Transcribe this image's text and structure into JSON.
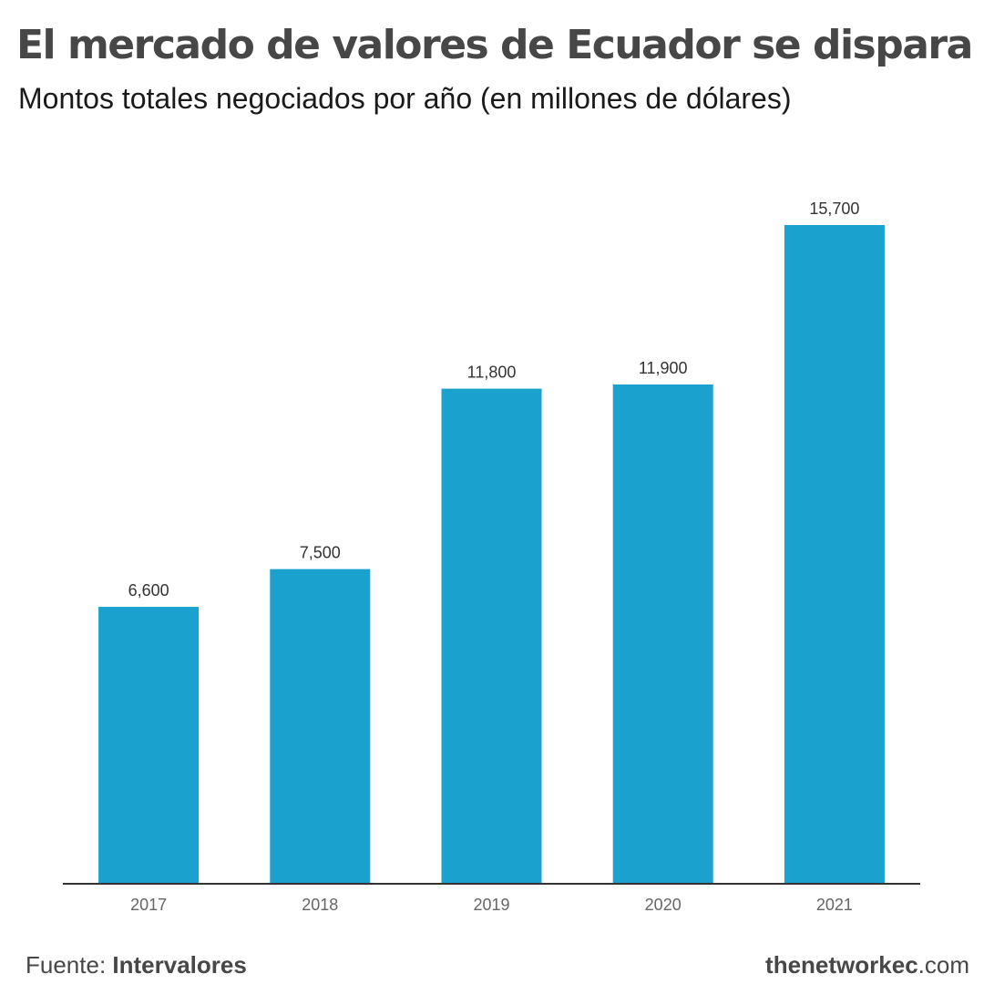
{
  "header": {
    "title": "El mercado de valores de Ecuador se dispara",
    "subtitle": "Montos totales negociados por año (en millones de dólares)"
  },
  "footer": {
    "source_prefix": "Fuente: ",
    "source_name": "Intervalores",
    "brand_bold": "thenetworkec",
    "brand_suffix": ".com"
  },
  "colors": {
    "bar": "#1aa1ce",
    "axis": "#333333",
    "text": "#474747"
  },
  "chart_data": {
    "type": "bar",
    "categories": [
      "2017",
      "2018",
      "2019",
      "2020",
      "2021"
    ],
    "values": [
      6600,
      7500,
      11800,
      11900,
      15700
    ],
    "value_labels": [
      "6,600",
      "7,500",
      "11,800",
      "11,900",
      "15,700"
    ],
    "title": "El mercado de valores de Ecuador se dispara",
    "subtitle": "Montos totales negociados por año (en millones de dólares)",
    "xlabel": "",
    "ylabel": "",
    "ylim": [
      0,
      15700
    ],
    "grid": false,
    "legend": "none"
  }
}
